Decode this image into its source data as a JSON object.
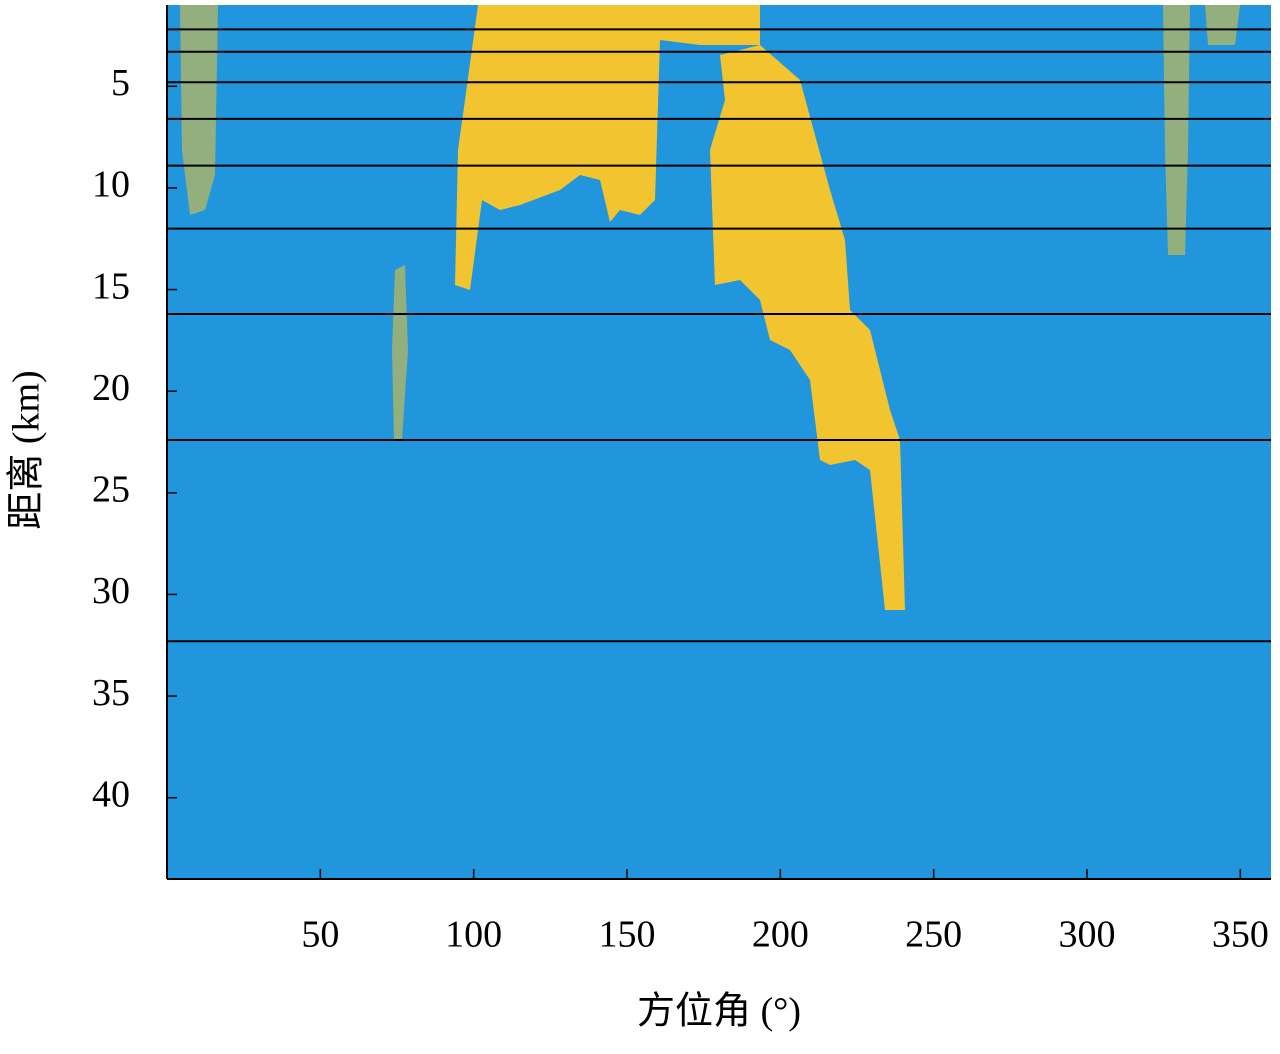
{
  "chart_data": {
    "type": "heatmap",
    "xlabel": "方位角 (°)",
    "ylabel": "距离 (km)",
    "xlim": [
      0,
      360
    ],
    "ylim": [
      1,
      44
    ],
    "y_inverted": true,
    "xticks": [
      50,
      100,
      150,
      200,
      250,
      300,
      350
    ],
    "yticks": [
      5,
      10,
      15,
      20,
      25,
      30,
      35,
      40
    ],
    "background_color": "#2196dc",
    "clutter_color": "#f2c430",
    "hlines": {
      "color": "#000000",
      "values": [
        2.2,
        3.3,
        4.8,
        6.6,
        8.9,
        12.0,
        16.2,
        22.4,
        32.3
      ]
    }
  }
}
